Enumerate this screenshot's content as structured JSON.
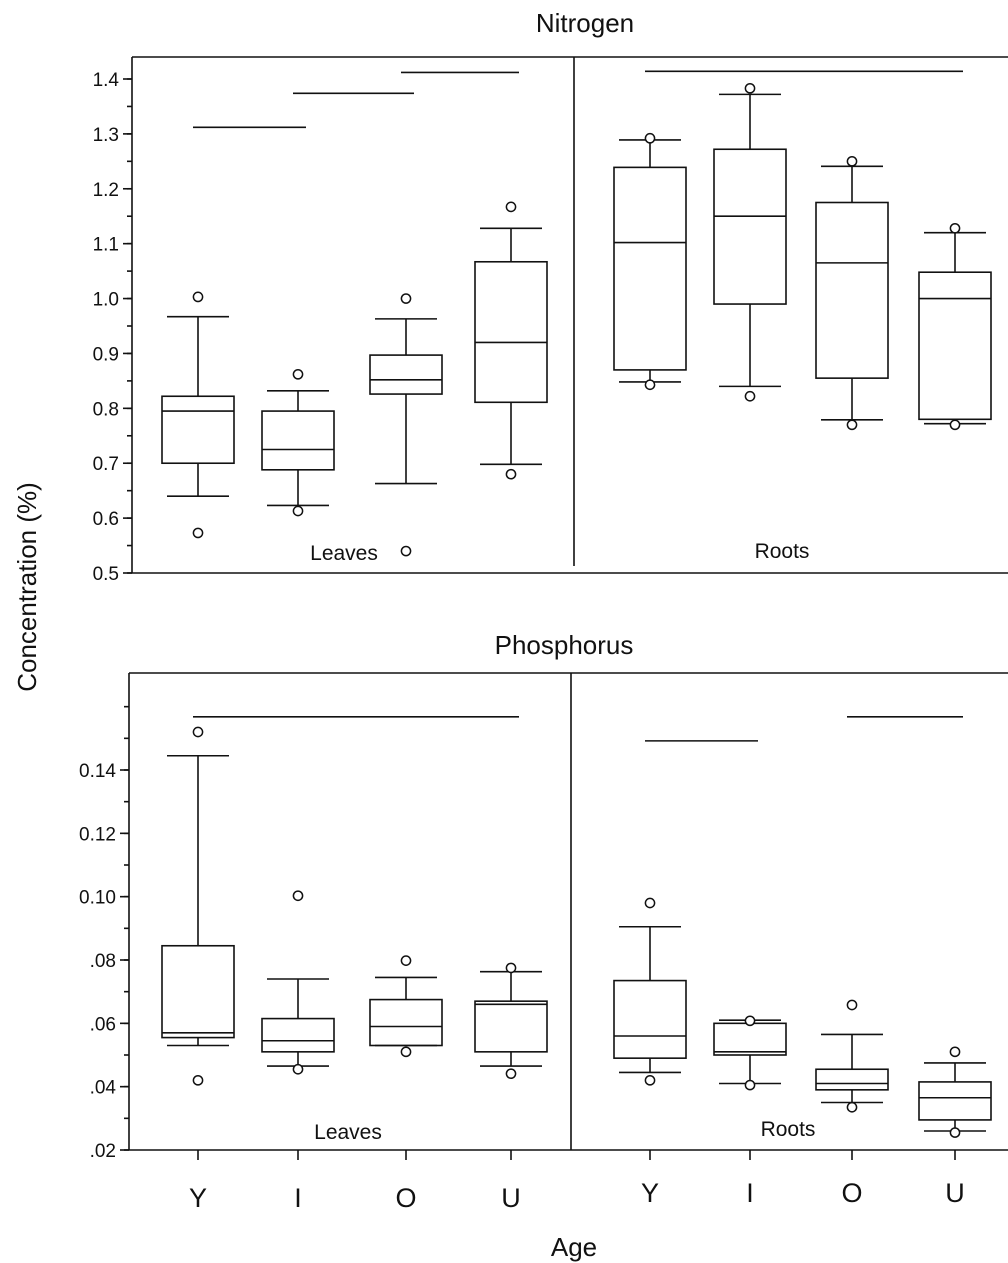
{
  "chart_data": [
    {
      "type": "boxplot",
      "title": "Nitrogen",
      "ylim": [
        0.5,
        1.42
      ],
      "yticks": [
        "0.5",
        "0.6",
        "0.7",
        "0.8",
        "0.9",
        "1.0",
        "1.1",
        "1.2",
        "1.3",
        "1.4"
      ],
      "ytick_values": [
        0.5,
        0.6,
        0.7,
        0.8,
        0.9,
        1.0,
        1.1,
        1.2,
        1.3,
        1.4
      ],
      "groups": [
        {
          "label": "Leaves",
          "boxes": [
            {
              "category": "Y",
              "whisker_low": 0.64,
              "q1": 0.7,
              "median": 0.795,
              "q3": 0.822,
              "whisker_high": 0.967,
              "outliers": [
                0.573,
                1.003
              ]
            },
            {
              "category": "I",
              "whisker_low": 0.623,
              "q1": 0.688,
              "median": 0.725,
              "q3": 0.795,
              "whisker_high": 0.832,
              "outliers": [
                0.613,
                0.862
              ]
            },
            {
              "category": "O",
              "whisker_low": 0.663,
              "q1": 0.826,
              "median": 0.852,
              "q3": 0.897,
              "whisker_high": 0.963,
              "outliers": [
                0.54,
                1.0
              ]
            },
            {
              "category": "U",
              "whisker_low": 0.698,
              "q1": 0.811,
              "median": 0.92,
              "q3": 1.067,
              "whisker_high": 1.128,
              "outliers": [
                0.68,
                1.167
              ]
            }
          ],
          "homogeneous_lines": [
            {
              "from": "Y",
              "to": "I",
              "level": 1.312
            },
            {
              "from": "I",
              "to": "O",
              "level": 1.374
            },
            {
              "from": "O",
              "to": "U",
              "level": 1.412
            }
          ]
        },
        {
          "label": "Roots",
          "boxes": [
            {
              "category": "Y",
              "whisker_low": 0.848,
              "q1": 0.87,
              "median": 1.102,
              "q3": 1.239,
              "whisker_high": 1.289,
              "outliers": [
                0.843,
                1.292
              ]
            },
            {
              "category": "I",
              "whisker_low": 0.84,
              "q1": 0.99,
              "median": 1.15,
              "q3": 1.272,
              "whisker_high": 1.372,
              "outliers": [
                0.822,
                1.383
              ]
            },
            {
              "category": "O",
              "whisker_low": 0.779,
              "q1": 0.855,
              "median": 1.065,
              "q3": 1.175,
              "whisker_high": 1.241,
              "outliers": [
                0.77,
                1.25
              ]
            },
            {
              "category": "U",
              "whisker_low": 0.772,
              "q1": 0.78,
              "median": 1.0,
              "q3": 1.048,
              "whisker_high": 1.12,
              "outliers": [
                0.77,
                1.128
              ]
            }
          ],
          "homogeneous_lines": [
            {
              "from": "Y",
              "to": "U",
              "level": 1.414
            }
          ]
        }
      ]
    },
    {
      "type": "boxplot",
      "title": "Phosphorus",
      "ylim": [
        0.02,
        0.165
      ],
      "yticks": [
        ".02",
        ".04",
        ".06",
        ".08",
        "0.10",
        "0.12",
        "0.14"
      ],
      "ytick_values": [
        0.02,
        0.04,
        0.06,
        0.08,
        0.1,
        0.12,
        0.14
      ],
      "groups": [
        {
          "label": "Leaves",
          "boxes": [
            {
              "category": "Y",
              "whisker_low": 0.053,
              "q1": 0.0555,
              "median": 0.057,
              "q3": 0.0845,
              "whisker_high": 0.1445,
              "outliers": [
                0.042,
                0.152
              ]
            },
            {
              "category": "I",
              "whisker_low": 0.0465,
              "q1": 0.051,
              "median": 0.0545,
              "q3": 0.0615,
              "whisker_high": 0.074,
              "outliers": [
                0.0455,
                0.1003
              ]
            },
            {
              "category": "O",
              "whisker_low": 0.053,
              "q1": 0.053,
              "median": 0.059,
              "q3": 0.0675,
              "whisker_high": 0.0745,
              "outliers": [
                0.051,
                0.0798
              ]
            },
            {
              "category": "U",
              "whisker_low": 0.0465,
              "q1": 0.051,
              "median": 0.066,
              "q3": 0.067,
              "whisker_high": 0.0763,
              "outliers": [
                0.0441,
                0.0775
              ]
            }
          ],
          "homogeneous_lines": [
            {
              "from": "Y",
              "to": "U",
              "level": 0.1568
            }
          ]
        },
        {
          "label": "Roots",
          "boxes": [
            {
              "category": "Y",
              "whisker_low": 0.0445,
              "q1": 0.049,
              "median": 0.056,
              "q3": 0.0735,
              "whisker_high": 0.0905,
              "outliers": [
                0.042,
                0.098
              ]
            },
            {
              "category": "I",
              "whisker_low": 0.041,
              "q1": 0.05,
              "median": 0.051,
              "q3": 0.06,
              "whisker_high": 0.061,
              "outliers": [
                0.0405,
                0.0608
              ]
            },
            {
              "category": "O",
              "whisker_low": 0.035,
              "q1": 0.039,
              "median": 0.041,
              "q3": 0.0455,
              "whisker_high": 0.0565,
              "outliers": [
                0.0335,
                0.0658
              ]
            },
            {
              "category": "U",
              "whisker_low": 0.026,
              "q1": 0.0295,
              "median": 0.0365,
              "q3": 0.0415,
              "whisker_high": 0.0475,
              "outliers": [
                0.0255,
                0.051
              ]
            }
          ],
          "homogeneous_lines": [
            {
              "from": "Y",
              "to": "I",
              "level": 0.1492
            },
            {
              "from": "O",
              "to": "U",
              "level": 0.1568
            }
          ]
        }
      ]
    }
  ],
  "categories": [
    "Y",
    "I",
    "O",
    "U"
  ],
  "ylabel": "Concentration  (%)",
  "xlabel": "Age"
}
